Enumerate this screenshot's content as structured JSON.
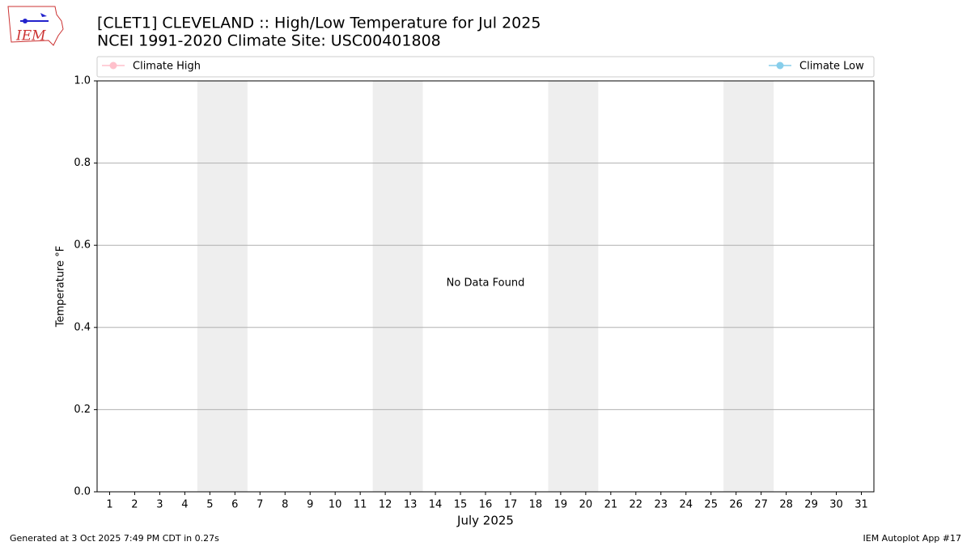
{
  "logo": "IEM",
  "chart_data": {
    "type": "line",
    "title": "[CLET1] CLEVELAND :: High/Low Temperature for Jul 2025",
    "subtitle": "NCEI 1991-2020 Climate Site: USC00401808",
    "xlabel": "July 2025",
    "ylabel": "Temperature °F",
    "annotation": "No Data Found",
    "xlim": [
      0.5,
      31.5
    ],
    "xticks": [
      1,
      2,
      3,
      4,
      5,
      6,
      7,
      8,
      9,
      10,
      11,
      12,
      13,
      14,
      15,
      16,
      17,
      18,
      19,
      20,
      21,
      22,
      23,
      24,
      25,
      26,
      27,
      28,
      29,
      30,
      31
    ],
    "ylim": [
      0,
      1
    ],
    "yticks": [
      {
        "value": 0,
        "label": "0.0"
      },
      0.2,
      0.4,
      0.6,
      0.8,
      {
        "value": 1,
        "label": "1.0"
      }
    ],
    "grid": true,
    "shaded_ranges": [
      [
        4.5,
        6.5
      ],
      [
        11.5,
        13.5
      ],
      [
        18.5,
        20.5
      ],
      [
        25.5,
        27.5
      ]
    ],
    "shade_color": "#eeeeee",
    "series": [
      {
        "name": "Climate High",
        "color": "pink",
        "values": []
      },
      {
        "name": "Climate Low",
        "color": "skyblue",
        "values": []
      }
    ]
  },
  "footer": {
    "left": "Generated at 3 Oct 2025 7:49 PM CDT in 0.27s",
    "right": "IEM Autoplot App #17"
  }
}
